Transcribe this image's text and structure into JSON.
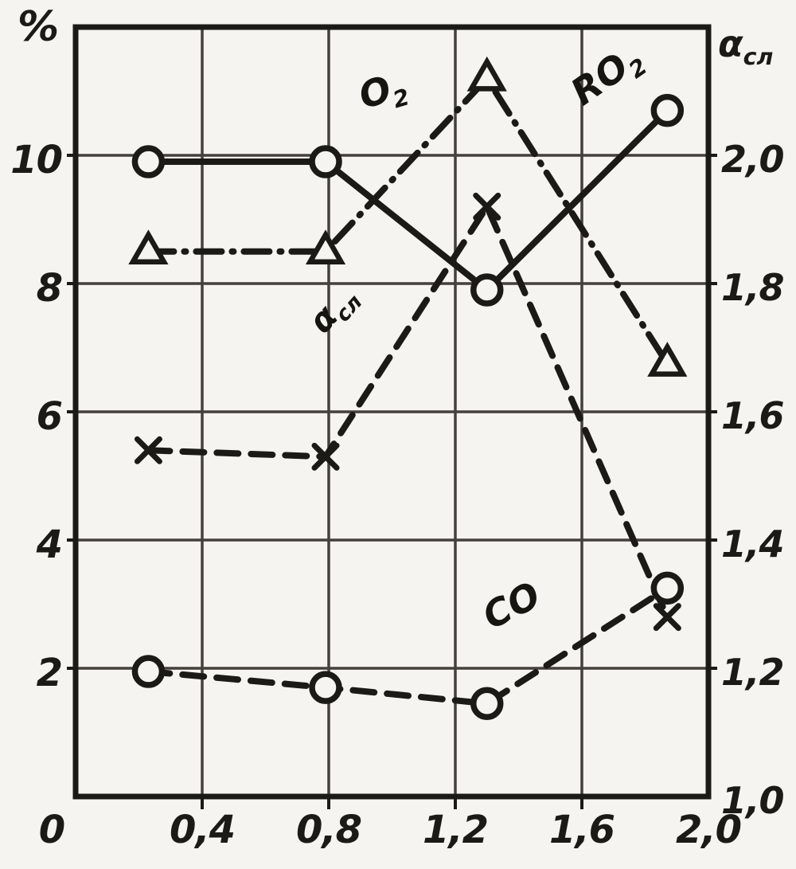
{
  "figure": {
    "background": "#f5f4f0",
    "ink": "#1c1a17",
    "grid_color": "#44403b"
  },
  "chart_data": {
    "type": "line",
    "title": "",
    "grid": true,
    "legend_position": "inline-labels",
    "x_axis": {
      "label": "",
      "range": [
        0,
        2.0
      ],
      "tick_values": [
        0,
        0.4,
        0.8,
        1.2,
        1.6,
        2.0
      ],
      "tick_labels": [
        "0",
        "0,4",
        "0,8",
        "1,2",
        "1,6",
        "2,0"
      ],
      "grid_values": [
        0.4,
        0.8,
        1.2,
        1.6
      ]
    },
    "y_axis_left": {
      "label": "%",
      "range": [
        0,
        12
      ],
      "tick_values": [
        10,
        8,
        6,
        4,
        2
      ],
      "tick_labels": [
        "10",
        "8",
        "6",
        "4",
        "2"
      ],
      "grid_values": [
        2,
        4,
        6,
        8,
        10
      ]
    },
    "y_axis_right": {
      "label_main": "α",
      "label_sub": "сл",
      "range": [
        1.0,
        2.2
      ],
      "tick_values": [
        2.0,
        1.8,
        1.6,
        1.4,
        1.2,
        1.0
      ],
      "tick_labels": [
        "2,0",
        "1,8",
        "1,6",
        "1,4",
        "1,2",
        "1,0"
      ]
    },
    "series": [
      {
        "id": "ro2",
        "label_main": "RO",
        "label_sub": "2",
        "axis": "left",
        "line": "solid",
        "marker": "circle",
        "x": [
          0.23,
          0.79,
          1.3,
          1.87
        ],
        "y": [
          9.9,
          9.9,
          7.9,
          10.7
        ]
      },
      {
        "id": "o2",
        "label_main": "O",
        "label_sub": "2",
        "axis": "left",
        "line": "dashdot",
        "marker": "triangle",
        "x": [
          0.23,
          0.79,
          1.3,
          1.87
        ],
        "y": [
          8.5,
          8.5,
          11.2,
          6.75
        ]
      },
      {
        "id": "alpha_sl",
        "label_main": "α",
        "label_sub": "сл",
        "axis": "right",
        "line": "dashed",
        "marker": "x",
        "x": [
          0.23,
          0.79,
          1.3,
          1.87
        ],
        "y": [
          1.54,
          1.53,
          1.92,
          1.28
        ]
      },
      {
        "id": "co",
        "label_main": "CO",
        "label_sub": "",
        "axis": "left",
        "line": "dashed",
        "marker": "circle",
        "x": [
          0.23,
          0.79,
          1.3,
          1.87
        ],
        "y": [
          1.95,
          1.7,
          1.45,
          3.25
        ]
      }
    ]
  }
}
